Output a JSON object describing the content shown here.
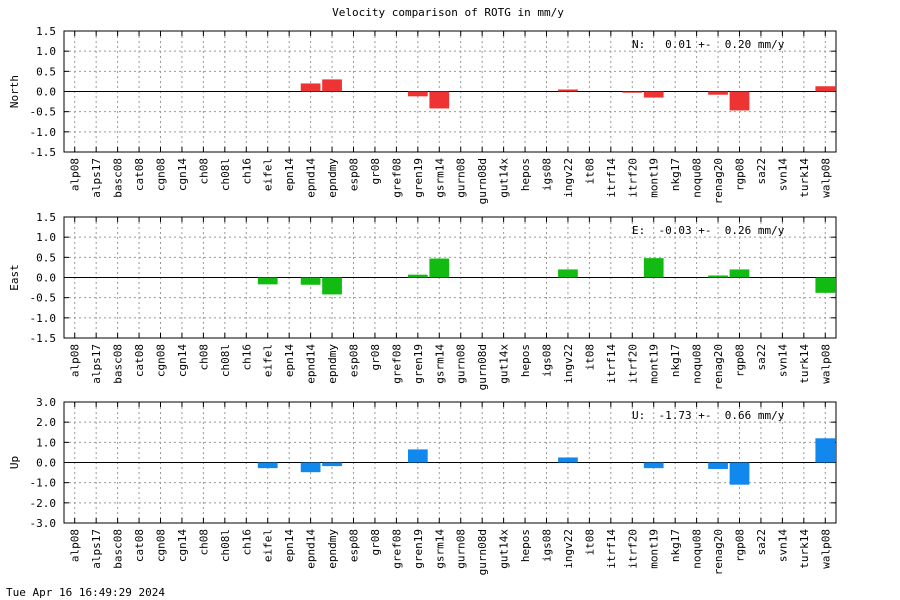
{
  "footer_timestamp": "Tue Apr 16 16:49:29 2024",
  "chart_data": [
    {
      "type": "bar",
      "title": "Velocity comparison of ROTG in mm/y",
      "ylabel": "North",
      "ylim": [
        -1.5,
        1.5
      ],
      "yticks": [
        "1.5",
        "1.0",
        "0.5",
        "0.0",
        "-0.5",
        "-1.0",
        "-1.5"
      ],
      "color": "#ee3333",
      "annotation": "N:   0.01 +-  0.20 mm/y",
      "grid": true,
      "categories": [
        "alp08",
        "alps17",
        "basc08",
        "cat08",
        "cgn08",
        "cgn14",
        "ch08",
        "ch08l",
        "ch16",
        "eifel",
        "epn14",
        "epnd14",
        "epndmy",
        "esp08",
        "gr08",
        "gref08",
        "gren19",
        "gsrm14",
        "gurn08",
        "gurn08d",
        "gut14x",
        "hepos",
        "igs08",
        "ingv22",
        "it08",
        "itrf14",
        "itrf20",
        "mont19",
        "nkg17",
        "noqu08",
        "renag20",
        "rgp08",
        "sa22",
        "svn14",
        "turk14",
        "walp08"
      ],
      "values": [
        0,
        0,
        0,
        0,
        0,
        0,
        0,
        0,
        0,
        0,
        0,
        0.2,
        0.3,
        0,
        0,
        0,
        -0.12,
        -0.42,
        0,
        0,
        0,
        0,
        0,
        0.05,
        0,
        0,
        -0.03,
        -0.15,
        0,
        0,
        -0.08,
        -0.47,
        0,
        0,
        0,
        0.13
      ]
    },
    {
      "type": "bar",
      "title": "",
      "ylabel": "East",
      "ylim": [
        -1.5,
        1.5
      ],
      "yticks": [
        "1.5",
        "1.0",
        "0.5",
        "0.0",
        "-0.5",
        "-1.0",
        "-1.5"
      ],
      "color": "#11bb11",
      "annotation": "E:  -0.03 +-  0.26 mm/y",
      "grid": true,
      "categories": [
        "alp08",
        "alps17",
        "basc08",
        "cat08",
        "cgn08",
        "cgn14",
        "ch08",
        "ch08l",
        "ch16",
        "eifel",
        "epn14",
        "epnd14",
        "epndmy",
        "esp08",
        "gr08",
        "gref08",
        "gren19",
        "gsrm14",
        "gurn08",
        "gurn08d",
        "gut14x",
        "hepos",
        "igs08",
        "ingv22",
        "it08",
        "itrf14",
        "itrf20",
        "mont19",
        "nkg17",
        "noqu08",
        "renag20",
        "rgp08",
        "sa22",
        "svn14",
        "turk14",
        "walp08"
      ],
      "values": [
        0,
        0,
        0,
        0,
        0,
        0,
        0,
        0,
        0,
        -0.17,
        0,
        -0.18,
        -0.42,
        0,
        0,
        0,
        0.07,
        0.47,
        0,
        0,
        0,
        0,
        0,
        0.2,
        0,
        0,
        0,
        0.48,
        0,
        0,
        0.05,
        0.2,
        0,
        0,
        0,
        -0.38
      ]
    },
    {
      "type": "bar",
      "title": "",
      "ylabel": "Up",
      "ylim": [
        -3.0,
        3.0
      ],
      "yticks": [
        "3.0",
        "2.0",
        "1.0",
        "0.0",
        "-1.0",
        "-2.0",
        "-3.0"
      ],
      "color": "#1188ee",
      "annotation": "U:  -1.73 +-  0.66 mm/y",
      "grid": true,
      "categories": [
        "alp08",
        "alps17",
        "basc08",
        "cat08",
        "cgn08",
        "cgn14",
        "ch08",
        "ch08l",
        "ch16",
        "eifel",
        "epn14",
        "epnd14",
        "epndmy",
        "esp08",
        "gr08",
        "gref08",
        "gren19",
        "gsrm14",
        "gurn08",
        "gurn08d",
        "gut14x",
        "hepos",
        "igs08",
        "ingv22",
        "it08",
        "itrf14",
        "itrf20",
        "mont19",
        "nkg17",
        "noqu08",
        "renag20",
        "rgp08",
        "sa22",
        "svn14",
        "turk14",
        "walp08"
      ],
      "values": [
        0,
        0,
        0,
        0,
        0,
        0,
        0,
        0,
        0,
        -0.28,
        0,
        -0.48,
        -0.18,
        0,
        0,
        0,
        0.65,
        0,
        0,
        0,
        0,
        0,
        0,
        0.25,
        0,
        0,
        0,
        -0.28,
        0,
        0,
        -0.32,
        -1.1,
        0,
        0,
        0,
        1.2
      ]
    }
  ]
}
